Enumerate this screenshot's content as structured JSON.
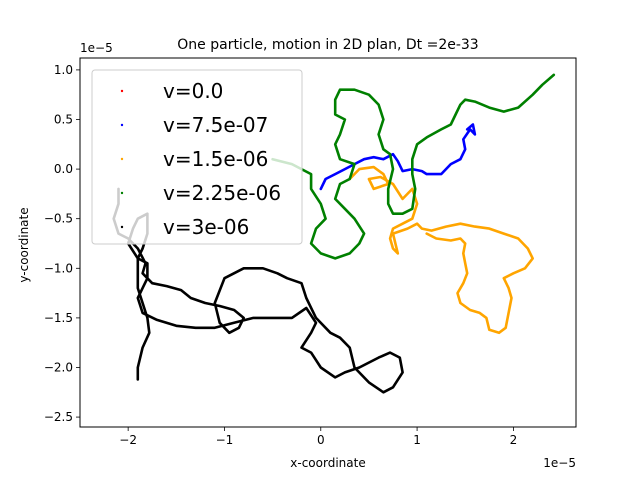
{
  "chart_data": {
    "type": "line",
    "title": "One particle, motion in 2D plan, Dt =2e-33",
    "xlabel": "x-coordinate",
    "ylabel": "y-coordinate",
    "x_offset_label": "1e−5",
    "y_offset_label": "1e−5",
    "xlim": [
      -2.5,
      2.65
    ],
    "ylim": [
      -2.6,
      1.12
    ],
    "x_ticks": [
      {
        "value": -2,
        "label": "−2"
      },
      {
        "value": -1,
        "label": "−1"
      },
      {
        "value": 0,
        "label": "0"
      },
      {
        "value": 1,
        "label": "1"
      },
      {
        "value": 2,
        "label": "2"
      }
    ],
    "y_ticks": [
      {
        "value": 1.0,
        "label": "1.0"
      },
      {
        "value": 0.5,
        "label": "0.5"
      },
      {
        "value": 0.0,
        "label": "0.0"
      },
      {
        "value": -0.5,
        "label": "−0.5"
      },
      {
        "value": -1.0,
        "label": "−1.0"
      },
      {
        "value": -1.5,
        "label": "−1.5"
      },
      {
        "value": -2.0,
        "label": "−2.0"
      },
      {
        "value": -2.5,
        "label": "−2.5"
      }
    ],
    "legend_position": "upper-left",
    "series": [
      {
        "name": "v=0.0",
        "color": "#ff0000",
        "points": []
      },
      {
        "name": "v=7.5e-07",
        "color": "#0000ff",
        "points": [
          [
            0.0,
            -0.2
          ],
          [
            0.05,
            -0.1
          ],
          [
            0.15,
            -0.05
          ],
          [
            0.25,
            0.0
          ],
          [
            0.35,
            0.05
          ],
          [
            0.45,
            0.1
          ],
          [
            0.55,
            0.12
          ],
          [
            0.65,
            0.1
          ],
          [
            0.75,
            0.15
          ],
          [
            0.8,
            0.08
          ],
          [
            0.85,
            -0.02
          ],
          [
            0.95,
            0.0
          ],
          [
            1.05,
            -0.02
          ],
          [
            1.1,
            -0.05
          ],
          [
            1.25,
            -0.05
          ],
          [
            1.35,
            0.05
          ],
          [
            1.45,
            0.1
          ],
          [
            1.5,
            0.2
          ],
          [
            1.48,
            0.3
          ],
          [
            1.55,
            0.4
          ],
          [
            1.6,
            0.35
          ],
          [
            1.58,
            0.45
          ],
          [
            1.52,
            0.4
          ]
        ]
      },
      {
        "name": "v=1.5e-06",
        "color": "#ffa500",
        "points": [
          [
            0.3,
            -0.1
          ],
          [
            0.4,
            0.0
          ],
          [
            0.55,
            0.02
          ],
          [
            0.65,
            -0.05
          ],
          [
            0.7,
            -0.15
          ],
          [
            0.55,
            -0.2
          ],
          [
            0.5,
            -0.1
          ],
          [
            0.62,
            -0.08
          ],
          [
            0.75,
            -0.15
          ],
          [
            0.85,
            -0.3
          ],
          [
            0.95,
            -0.2
          ],
          [
            1.0,
            -0.35
          ],
          [
            0.95,
            -0.5
          ],
          [
            0.85,
            -0.55
          ],
          [
            0.75,
            -0.6
          ],
          [
            0.72,
            -0.7
          ],
          [
            0.75,
            -0.8
          ],
          [
            0.8,
            -0.85
          ],
          [
            0.75,
            -0.65
          ],
          [
            0.9,
            -0.6
          ],
          [
            1.0,
            -0.55
          ],
          [
            1.05,
            -0.6
          ],
          [
            1.15,
            -0.62
          ],
          [
            1.3,
            -0.58
          ],
          [
            1.45,
            -0.55
          ],
          [
            1.6,
            -0.58
          ],
          [
            1.75,
            -0.6
          ],
          [
            1.9,
            -0.65
          ],
          [
            2.05,
            -0.7
          ],
          [
            2.15,
            -0.8
          ],
          [
            2.2,
            -0.9
          ],
          [
            2.12,
            -1.0
          ],
          [
            2.0,
            -1.05
          ],
          [
            1.9,
            -1.1
          ],
          [
            1.95,
            -1.2
          ],
          [
            1.98,
            -1.3
          ],
          [
            1.95,
            -1.45
          ],
          [
            1.92,
            -1.6
          ],
          [
            1.85,
            -1.65
          ],
          [
            1.75,
            -1.62
          ],
          [
            1.72,
            -1.5
          ],
          [
            1.65,
            -1.45
          ],
          [
            1.55,
            -1.42
          ],
          [
            1.45,
            -1.35
          ],
          [
            1.42,
            -1.25
          ],
          [
            1.48,
            -1.15
          ],
          [
            1.52,
            -1.05
          ],
          [
            1.5,
            -0.95
          ],
          [
            1.48,
            -0.85
          ],
          [
            1.5,
            -0.75
          ],
          [
            1.45,
            -0.7
          ],
          [
            1.35,
            -0.72
          ],
          [
            1.2,
            -0.7
          ],
          [
            1.1,
            -0.65
          ]
        ]
      },
      {
        "name": "v=2.25e-06",
        "color": "#008000",
        "points": [
          [
            -0.5,
            0.1
          ],
          [
            -0.3,
            0.05
          ],
          [
            -0.1,
            -0.05
          ],
          [
            -0.1,
            -0.2
          ],
          [
            0.0,
            -0.35
          ],
          [
            0.05,
            -0.5
          ],
          [
            -0.05,
            -0.6
          ],
          [
            -0.1,
            -0.75
          ],
          [
            0.0,
            -0.85
          ],
          [
            0.15,
            -0.9
          ],
          [
            0.3,
            -0.85
          ],
          [
            0.4,
            -0.75
          ],
          [
            0.45,
            -0.65
          ],
          [
            0.35,
            -0.5
          ],
          [
            0.25,
            -0.4
          ],
          [
            0.15,
            -0.3
          ],
          [
            0.2,
            -0.15
          ],
          [
            0.3,
            -0.1
          ],
          [
            0.35,
            0.05
          ],
          [
            0.2,
            0.1
          ],
          [
            0.15,
            0.25
          ],
          [
            0.2,
            0.35
          ],
          [
            0.25,
            0.5
          ],
          [
            0.15,
            0.55
          ],
          [
            0.15,
            0.7
          ],
          [
            0.2,
            0.8
          ],
          [
            0.35,
            0.8
          ],
          [
            0.5,
            0.75
          ],
          [
            0.6,
            0.65
          ],
          [
            0.65,
            0.5
          ],
          [
            0.6,
            0.35
          ],
          [
            0.65,
            0.2
          ],
          [
            0.72,
            0.15
          ],
          [
            0.75,
            0.0
          ],
          [
            0.7,
            -0.2
          ],
          [
            0.7,
            -0.35
          ],
          [
            0.75,
            -0.45
          ],
          [
            0.85,
            -0.45
          ],
          [
            0.95,
            -0.4
          ],
          [
            0.98,
            -0.2
          ],
          [
            0.95,
            -0.05
          ],
          [
            0.95,
            0.1
          ],
          [
            1.0,
            0.25
          ],
          [
            1.1,
            0.32
          ],
          [
            1.25,
            0.4
          ],
          [
            1.35,
            0.45
          ],
          [
            1.4,
            0.55
          ],
          [
            1.45,
            0.65
          ],
          [
            1.5,
            0.7
          ],
          [
            1.6,
            0.68
          ],
          [
            1.75,
            0.62
          ],
          [
            1.9,
            0.58
          ],
          [
            2.05,
            0.62
          ],
          [
            2.2,
            0.75
          ],
          [
            2.3,
            0.85
          ],
          [
            2.42,
            0.95
          ]
        ]
      },
      {
        "name": "v=3e-06",
        "color": "#000000",
        "points": [
          [
            -2.1,
            -0.2
          ],
          [
            -2.1,
            -0.35
          ],
          [
            -2.15,
            -0.5
          ],
          [
            -2.1,
            -0.65
          ],
          [
            -2.0,
            -0.7
          ],
          [
            -1.9,
            -0.8
          ],
          [
            -1.82,
            -0.95
          ],
          [
            -1.85,
            -1.05
          ],
          [
            -1.75,
            -1.15
          ],
          [
            -1.6,
            -1.18
          ],
          [
            -1.45,
            -1.22
          ],
          [
            -1.35,
            -1.3
          ],
          [
            -1.2,
            -1.35
          ],
          [
            -1.05,
            -1.38
          ],
          [
            -0.9,
            -1.42
          ],
          [
            -0.8,
            -1.5
          ],
          [
            -0.85,
            -1.6
          ],
          [
            -0.95,
            -1.65
          ],
          [
            -1.05,
            -1.55
          ],
          [
            -1.1,
            -1.35
          ],
          [
            -1.0,
            -1.1
          ],
          [
            -0.8,
            -1.0
          ],
          [
            -0.6,
            -1.0
          ],
          [
            -0.45,
            -1.05
          ],
          [
            -0.35,
            -1.1
          ],
          [
            -0.2,
            -1.15
          ],
          [
            -0.15,
            -1.3
          ],
          [
            -0.05,
            -1.5
          ],
          [
            0.1,
            -1.65
          ],
          [
            0.2,
            -1.7
          ],
          [
            0.3,
            -1.8
          ],
          [
            0.35,
            -2.0
          ],
          [
            0.5,
            -2.15
          ],
          [
            0.65,
            -2.25
          ],
          [
            0.75,
            -2.2
          ],
          [
            0.85,
            -2.05
          ],
          [
            0.82,
            -1.9
          ],
          [
            0.72,
            -1.85
          ],
          [
            0.6,
            -1.9
          ],
          [
            0.4,
            -2.0
          ],
          [
            0.25,
            -2.05
          ],
          [
            0.15,
            -2.1
          ],
          [
            0.0,
            -2.0
          ],
          [
            -0.1,
            -1.85
          ],
          [
            -0.2,
            -1.8
          ],
          [
            -0.1,
            -1.65
          ],
          [
            -0.05,
            -1.55
          ],
          [
            -0.15,
            -1.4
          ],
          [
            -0.3,
            -1.5
          ],
          [
            -0.5,
            -1.5
          ],
          [
            -0.7,
            -1.5
          ],
          [
            -0.9,
            -1.55
          ],
          [
            -1.1,
            -1.6
          ],
          [
            -1.3,
            -1.6
          ],
          [
            -1.5,
            -1.58
          ],
          [
            -1.7,
            -1.52
          ],
          [
            -1.85,
            -1.45
          ],
          [
            -1.9,
            -1.3
          ],
          [
            -1.85,
            -1.2
          ],
          [
            -1.8,
            -1.1
          ],
          [
            -1.8,
            -0.95
          ],
          [
            -1.9,
            -0.9
          ],
          [
            -2.0,
            -0.75
          ],
          [
            -1.95,
            -0.6
          ],
          [
            -1.9,
            -0.5
          ],
          [
            -1.8,
            -0.45
          ],
          [
            -1.8,
            -0.65
          ],
          [
            -1.85,
            -0.8
          ],
          [
            -1.9,
            -0.9
          ],
          [
            -1.9,
            -1.05
          ],
          [
            -1.9,
            -1.2
          ],
          [
            -1.85,
            -1.35
          ],
          [
            -1.8,
            -1.5
          ],
          [
            -1.78,
            -1.65
          ],
          [
            -1.85,
            -1.8
          ],
          [
            -1.9,
            -2.0
          ],
          [
            -1.9,
            -2.12
          ]
        ]
      }
    ],
    "legend_entries": [
      {
        "label": "v=0.0",
        "color": "#ff0000"
      },
      {
        "label": "v=7.5e-07",
        "color": "#0000ff"
      },
      {
        "label": "v=1.5e-06",
        "color": "#ffa500"
      },
      {
        "label": "v=2.25e-06",
        "color": "#008000"
      },
      {
        "label": "v=3e-06",
        "color": "#000000"
      }
    ]
  }
}
